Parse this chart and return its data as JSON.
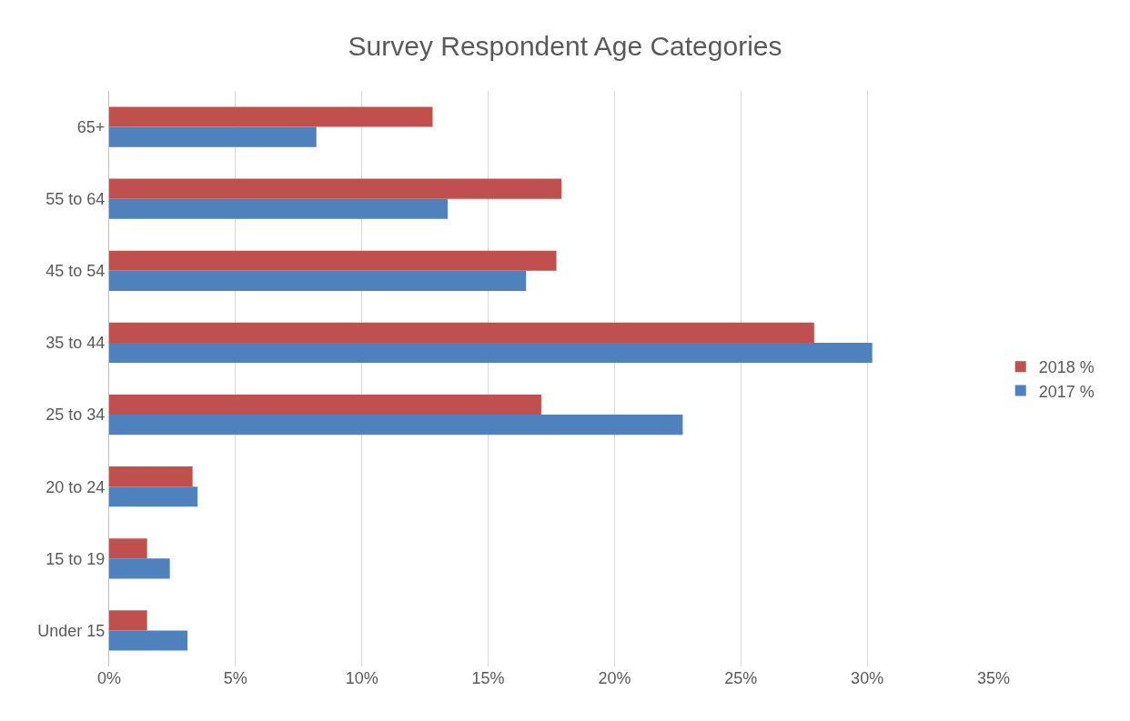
{
  "chart_data": {
    "type": "bar",
    "orientation": "horizontal",
    "title": "Survey Respondent Age Categories",
    "categories": [
      "65+",
      "55 to 64",
      "45 to 54",
      "35 to 44",
      "25 to 34",
      "20 to 24",
      "15 to 19",
      "Under 15"
    ],
    "series": [
      {
        "name": "2018 %",
        "color": "#c0504d",
        "values": [
          12.8,
          17.9,
          17.7,
          27.9,
          17.1,
          3.3,
          1.5,
          1.5
        ]
      },
      {
        "name": "2017 %",
        "color": "#4f81bd",
        "values": [
          8.2,
          13.4,
          16.5,
          30.2,
          22.7,
          3.5,
          2.4,
          3.1
        ]
      }
    ],
    "xlim": [
      0,
      35
    ],
    "xticks": [
      {
        "value": 0,
        "label": "0%"
      },
      {
        "value": 5,
        "label": "5%"
      },
      {
        "value": 10,
        "label": "10%"
      },
      {
        "value": 15,
        "label": "15%"
      },
      {
        "value": 20,
        "label": "20%"
      },
      {
        "value": 25,
        "label": "25%"
      },
      {
        "value": 30,
        "label": "30%"
      },
      {
        "value": 35,
        "label": "35%"
      }
    ],
    "grid": "x",
    "legend": "right"
  }
}
